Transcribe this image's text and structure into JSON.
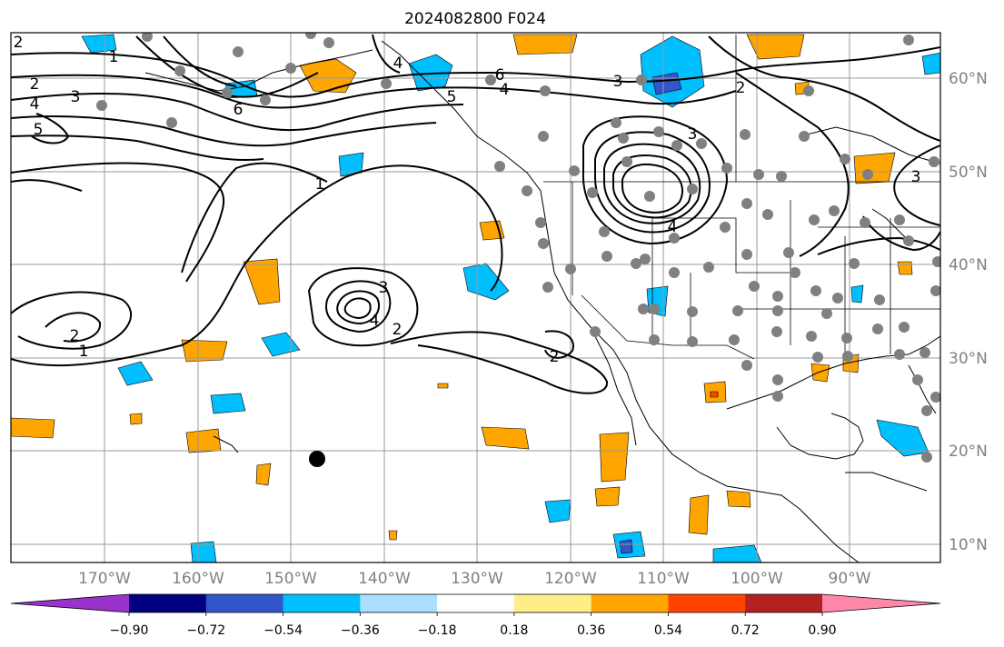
{
  "title": "2024082800 F024",
  "map": {
    "lat_labels": [
      "60°N",
      "50°N",
      "40°N",
      "30°N",
      "20°N",
      "10°N"
    ],
    "lon_labels": [
      "170°W",
      "160°W",
      "150°W",
      "140°W",
      "130°W",
      "120°W",
      "110°W",
      "100°W",
      "90°W"
    ]
  },
  "contour_labels": [
    "2",
    "1",
    "2",
    "4",
    "3",
    "5",
    "4",
    "6",
    "5",
    "6",
    "4",
    "3",
    "2",
    "3",
    "1",
    "3",
    "4",
    "2",
    "2",
    "1",
    "4",
    "3",
    "2"
  ],
  "colorbar": {
    "ticks": [
      "−0.90",
      "−0.72",
      "−0.54",
      "−0.36",
      "−0.18",
      "0.18",
      "0.36",
      "0.54",
      "0.72",
      "0.90"
    ],
    "colors": [
      "#9933cc",
      "#000080",
      "#3355cc",
      "#00bfff",
      "#aadfff",
      "#ffffff",
      "#ffee88",
      "#ffa500",
      "#ff4400",
      "#b22222",
      "#ff88aa"
    ]
  },
  "chart_data": {
    "type": "contour-map",
    "projection": "plate-carree",
    "lon_range": [
      -180,
      -80
    ],
    "lat_range": [
      8,
      65
    ],
    "grid": true,
    "colorbar_range": [
      -0.9,
      0.9
    ],
    "colorbar_levels": [
      -0.9,
      -0.72,
      -0.54,
      -0.36,
      -0.18,
      0.18,
      0.36,
      0.54,
      0.72,
      0.9
    ],
    "contour_levels": [
      1,
      2,
      3,
      4,
      5,
      6
    ]
  }
}
